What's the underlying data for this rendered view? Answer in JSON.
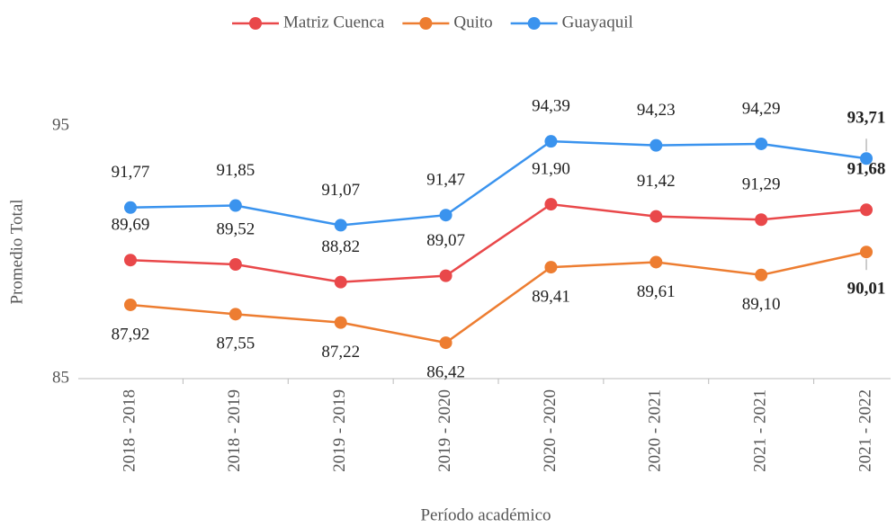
{
  "chart_data": {
    "type": "line",
    "x_label": "Período académico",
    "y_label": "Promedio Total",
    "categories": [
      "2018 - 2018",
      "2018 - 2019",
      "2019 - 2019",
      "2019 - 2020",
      "2020 - 2020",
      "2020 - 2021",
      "2021 - 2021",
      "2021 - 2022"
    ],
    "series": [
      {
        "name": "Matriz Cuenca",
        "color": "#e9484a",
        "values": [
          89.69,
          89.52,
          88.82,
          89.07,
          91.9,
          91.42,
          91.29,
          91.68
        ],
        "value_labels": [
          "89,69",
          "89,52",
          "88,82",
          "89,07",
          "91,90",
          "91,42",
          "91,29",
          "91,68"
        ]
      },
      {
        "name": "Quito",
        "color": "#ed7d31",
        "values": [
          87.92,
          87.55,
          87.22,
          86.42,
          89.41,
          89.61,
          89.1,
          90.01
        ],
        "value_labels": [
          "87,92",
          "87,55",
          "87,22",
          "86,42",
          "89,41",
          "89,61",
          "89,10",
          "90,01"
        ]
      },
      {
        "name": "Guayaquil",
        "color": "#3a93ee",
        "values": [
          91.77,
          91.85,
          91.07,
          91.47,
          94.39,
          94.23,
          94.29,
          93.71
        ],
        "value_labels": [
          "91,77",
          "91,85",
          "91,07",
          "91,47",
          "94,39",
          "94,23",
          "94,29",
          "93,71"
        ]
      }
    ],
    "ylim": [
      85,
      95
    ],
    "yticks": [
      85,
      95
    ],
    "grid": false,
    "legend": "top"
  }
}
